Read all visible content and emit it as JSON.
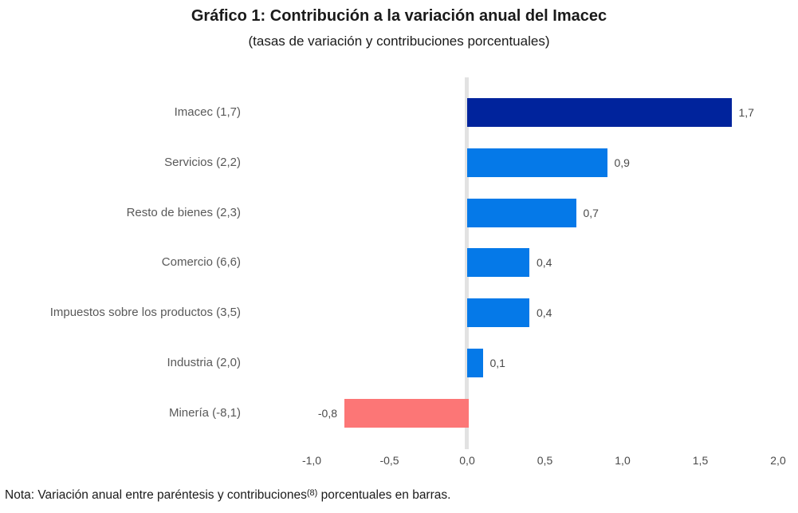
{
  "header": {
    "title": "Gráfico 1: Contribución a la variación anual del Imacec",
    "subtitle": "(tasas de variación y contribuciones porcentuales)"
  },
  "chart_data": {
    "type": "bar",
    "orientation": "horizontal",
    "title": "Gráfico 1: Contribución a la variación anual del Imacec",
    "subtitle": "(tasas de variación y contribuciones porcentuales)",
    "categories": [
      "Imacec (1,7)",
      "Servicios (2,2)",
      "Resto de bienes (2,3)",
      "Comercio (6,6)",
      "Impuestos sobre los productos (3,5)",
      "Industria (2,0)",
      "Minería (-8,1)"
    ],
    "values": [
      1.7,
      0.9,
      0.7,
      0.4,
      0.4,
      0.1,
      -0.8
    ],
    "value_labels": [
      "1,7",
      "0,9",
      "0,7",
      "0,4",
      "0,4",
      "0,1",
      "-0,8"
    ],
    "annual_variation_in_parentheses": [
      1.7,
      2.2,
      2.3,
      6.6,
      3.5,
      2.0,
      -8.1
    ],
    "xlabel": "",
    "ylabel": "",
    "xlim": [
      -1.0,
      2.0
    ],
    "x_ticks": [
      "-1,0",
      "-0,5",
      "0,0",
      "0,5",
      "1,0",
      "1,5",
      "2,0"
    ],
    "x_tick_values": [
      -1.0,
      -0.5,
      0.0,
      0.5,
      1.0,
      1.5,
      2.0
    ],
    "grid": false,
    "legend": false,
    "bar_colors": [
      "#00239C",
      "#0579E8",
      "#0579E8",
      "#0579E8",
      "#0579E8",
      "#0579E8",
      "#FC7676"
    ],
    "colors": {
      "highlight_bar": "#00239C",
      "positive_bar": "#0579E8",
      "negative_bar": "#FC7676",
      "zero_axis_line": "#E2E2E2",
      "category_label": "#595959",
      "value_label": "#4a4a4a",
      "tick_label": "#4a4a4a",
      "title_text": "#1a1a1a"
    }
  },
  "note": {
    "prefix": "Nota: Variación anual entre paréntesis y contribuciones",
    "superscript": "(8)",
    "suffix": " porcentuales en barras."
  }
}
